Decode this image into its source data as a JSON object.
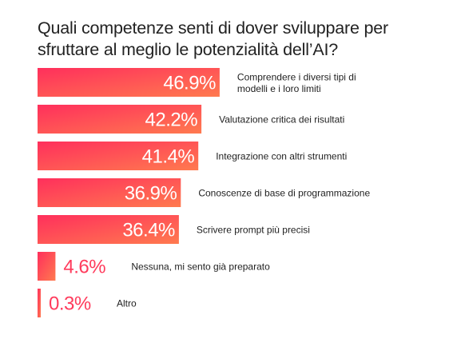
{
  "title": "Quali competenze senti di dover sviluppare per sfruttare al meglio le potenzialità dell’AI?",
  "chart_data": {
    "type": "bar",
    "orientation": "horizontal",
    "title": "Quali competenze senti di dover sviluppare per sfruttare al meglio le potenzialità dell’AI?",
    "unit": "%",
    "categories": [
      "Comprendere i diversi tipi di modelli e i loro limiti",
      "Valutazione critica dei risultati",
      "Integrazione con altri strumenti",
      "Conoscenze di base di programmazione",
      "Scrivere prompt più precisi",
      "Nessuna, mi sento già preparato",
      "Altro"
    ],
    "category_lines": [
      [
        "Comprendere i diversi tipi di",
        "modelli e i loro limiti"
      ],
      [
        "Valutazione critica dei risultati"
      ],
      [
        "Integrazione con altri strumenti"
      ],
      [
        "Conoscenze di base di programmazione"
      ],
      [
        "Scrivere prompt più precisi"
      ],
      [
        "Nessuna, mi sento già preparato"
      ],
      [
        "Altro"
      ]
    ],
    "values": [
      46.9,
      42.2,
      41.4,
      36.9,
      36.4,
      4.6,
      0.3
    ],
    "value_labels": [
      "46.9%",
      "42.2%",
      "41.4%",
      "36.9%",
      "36.4%",
      "4.6%",
      "0.3%"
    ],
    "colors": {
      "bar_start": "#ff2f5c",
      "bar_end": "#ff7a4f",
      "value_inside": "#ffffff",
      "value_outside": "#ff3b5c"
    },
    "grid": false,
    "legend": "none"
  }
}
